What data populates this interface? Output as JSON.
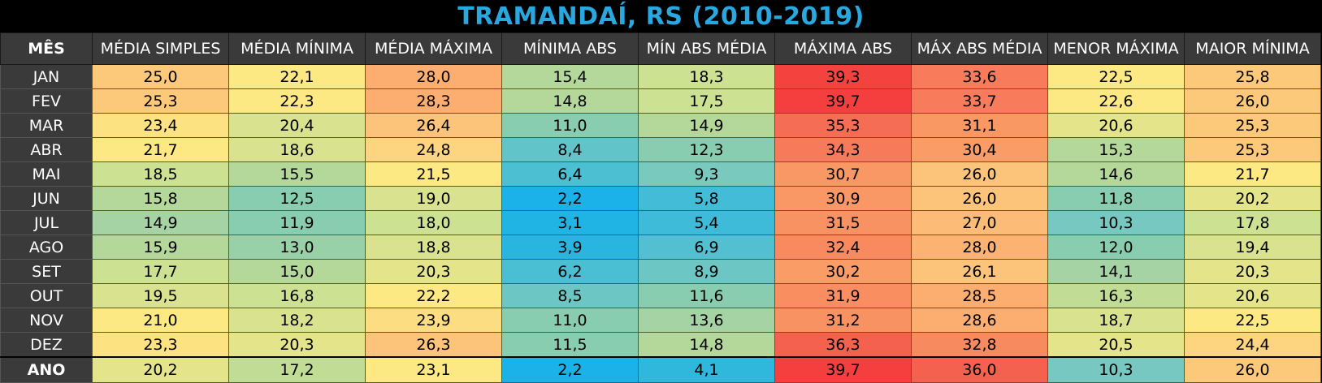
{
  "chart_data": {
    "type": "table",
    "title": "TRAMANDAÍ, RS (2010-2019)",
    "columns": [
      "MÊS",
      "MÉDIA SIMPLES",
      "MÉDIA MÍNIMA",
      "MÉDIA MÁXIMA",
      "MÍNIMA ABS",
      "MÍN ABS MÉDIA",
      "MÁXIMA ABS",
      "MÁX ABS MÉDIA",
      "MENOR MÁXIMA",
      "MAIOR MÍNIMA"
    ],
    "rows": [
      {
        "label": "JAN",
        "values": [
          "25,0",
          "22,1",
          "28,0",
          "15,4",
          "18,3",
          "39,3",
          "33,6",
          "22,5",
          "25,8"
        ],
        "colors": [
          "#fcc87a",
          "#fde983",
          "#fbae6f",
          "#b4d79a",
          "#cde193",
          "#f4433f",
          "#f87c5c",
          "#fde983",
          "#fcc87a"
        ]
      },
      {
        "label": "FEV",
        "values": [
          "25,3",
          "22,3",
          "28,3",
          "14,8",
          "17,5",
          "39,7",
          "33,7",
          "22,6",
          "26,0"
        ],
        "colors": [
          "#fcc87a",
          "#fde983",
          "#fbae6f",
          "#b4d79a",
          "#cde193",
          "#f43f3e",
          "#f87c5c",
          "#fde983",
          "#fcc87a"
        ]
      },
      {
        "label": "MAR",
        "values": [
          "23,4",
          "20,4",
          "26,4",
          "11,0",
          "14,9",
          "35,3",
          "31,1",
          "20,6",
          "25,3"
        ],
        "colors": [
          "#fde282",
          "#d9e38f",
          "#fcc47b",
          "#89cdb0",
          "#b4d79a",
          "#f56d55",
          "#fa9864",
          "#e4e48b",
          "#fcc87a"
        ]
      },
      {
        "label": "ABR",
        "values": [
          "21,7",
          "18,6",
          "24,8",
          "8,4",
          "12,3",
          "34,3",
          "30,4",
          "15,3",
          "25,3"
        ],
        "colors": [
          "#fde983",
          "#d9e38f",
          "#fdd47f",
          "#61c4c8",
          "#89cdb0",
          "#f77a5b",
          "#fa9c66",
          "#b4d79a",
          "#fcc87a"
        ]
      },
      {
        "label": "MAI",
        "values": [
          "18,5",
          "15,5",
          "21,5",
          "6,4",
          "9,3",
          "30,7",
          "26,0",
          "14,6",
          "21,7"
        ],
        "colors": [
          "#cde193",
          "#b4d79a",
          "#fde983",
          "#4dbfd3",
          "#7ac9bf",
          "#fa9865",
          "#fcc47b",
          "#b4d79a",
          "#fde983"
        ]
      },
      {
        "label": "JUN",
        "values": [
          "15,8",
          "12,5",
          "19,0",
          "2,2",
          "5,8",
          "30,9",
          "26,0",
          "11,8",
          "20,2"
        ],
        "colors": [
          "#b4d79a",
          "#89cdb0",
          "#d9e38f",
          "#1ab2e8",
          "#43bdd7",
          "#fa9865",
          "#fcc47b",
          "#89cdb0",
          "#e4e48b"
        ]
      },
      {
        "label": "JUL",
        "values": [
          "14,9",
          "11,9",
          "18,0",
          "3,1",
          "5,4",
          "31,5",
          "27,0",
          "10,3",
          "17,8"
        ],
        "colors": [
          "#a5d3a3",
          "#89cdb0",
          "#cde193",
          "#20b4e4",
          "#3ebbd8",
          "#f99263",
          "#fcbc78",
          "#77c8c0",
          "#cde193"
        ]
      },
      {
        "label": "AGO",
        "values": [
          "15,9",
          "13,0",
          "18,8",
          "3,9",
          "6,9",
          "32,4",
          "28,0",
          "12,0",
          "19,4"
        ],
        "colors": [
          "#b4d79a",
          "#98d1a8",
          "#d9e38f",
          "#28b6e0",
          "#52c0d0",
          "#f98a60",
          "#fbb272",
          "#89cdb0",
          "#d9e38f"
        ]
      },
      {
        "label": "SET",
        "values": [
          "17,7",
          "15,0",
          "20,3",
          "6,2",
          "8,9",
          "30,2",
          "26,1",
          "14,1",
          "20,3"
        ],
        "colors": [
          "#cde193",
          "#b4d79a",
          "#e4e48b",
          "#4abfd4",
          "#6cc6c3",
          "#fa9c66",
          "#fcc47b",
          "#a5d3a3",
          "#e4e48b"
        ]
      },
      {
        "label": "OUT",
        "values": [
          "19,5",
          "16,8",
          "22,2",
          "8,5",
          "11,6",
          "31,9",
          "28,5",
          "16,3",
          "20,6"
        ],
        "colors": [
          "#d9e38f",
          "#cde193",
          "#fde983",
          "#6cc6c3",
          "#89cdb0",
          "#f98e61",
          "#fbae6f",
          "#c1dc95",
          "#e4e48b"
        ]
      },
      {
        "label": "NOV",
        "values": [
          "21,0",
          "18,2",
          "23,9",
          "11,0",
          "13,6",
          "31,2",
          "28,6",
          "18,7",
          "22,5"
        ],
        "colors": [
          "#fde983",
          "#d9e38f",
          "#fddd81",
          "#89cdb0",
          "#a5d3a3",
          "#f99263",
          "#fbae6f",
          "#d9e38f",
          "#fde983"
        ]
      },
      {
        "label": "DEZ",
        "values": [
          "23,3",
          "20,3",
          "26,3",
          "11,5",
          "14,8",
          "36,3",
          "32,8",
          "20,5",
          "24,4"
        ],
        "colors": [
          "#fde282",
          "#e4e48b",
          "#fcc47b",
          "#89cdb0",
          "#b4d79a",
          "#f4614f",
          "#f88a60",
          "#e4e48b",
          "#fdd47f"
        ]
      }
    ],
    "summary": {
      "label": "ANO",
      "values": [
        "20,2",
        "17,2",
        "23,1",
        "2,2",
        "4,1",
        "39,7",
        "36,0",
        "10,3",
        "26,0"
      ],
      "colors": [
        "#e4e48b",
        "#c1dc95",
        "#fde983",
        "#1ab2e8",
        "#2fb8dc",
        "#f43f3e",
        "#f5614f",
        "#77c8c0",
        "#fcc87a"
      ]
    }
  }
}
